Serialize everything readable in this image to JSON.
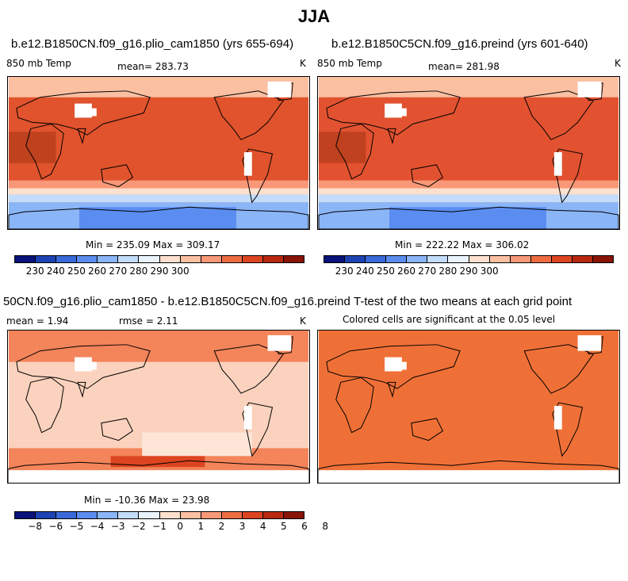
{
  "title": "JJA",
  "panels": [
    {
      "title": "b.e12.B1850CN.f09_g16.plio_cam1850 (yrs 655-694)",
      "left_label": "850 mb Temp",
      "center_label": "mean= 283.73",
      "right_label": "K",
      "minmax": "Min = 235.09 Max = 309.17",
      "fill_color": "#e0532c",
      "land_tint": "#b03a18"
    },
    {
      "title": "b.e12.B1850C5CN.f09_g16.preind (yrs 601-640)",
      "left_label": "850 mb Temp",
      "center_label": "mean= 281.98",
      "right_label": "K",
      "minmax": "Min = 222.22 Max = 306.02",
      "fill_color": "#e25230",
      "land_tint": "#b03a18"
    },
    {
      "title": "50CN.f09_g16.plio_cam1850 - b.e12.B1850C5CN.f09_g16.preind",
      "left_label": "mean =   1.94",
      "center_label": "rmse =   2.11",
      "right_label": "K",
      "minmax": "Min = -10.36 Max =  23.98",
      "fill_color": "#fbd2bd",
      "land_tint": "#f28a63"
    },
    {
      "title": "T-test of the two means at each grid point",
      "subtitle": "Colored cells are significant at the 0.05 level",
      "fill_color": "#ef7036"
    }
  ],
  "colorbar_abs": {
    "colors": [
      "#08127a",
      "#1d43b3",
      "#3a6ad9",
      "#5b8df0",
      "#8ab5f7",
      "#c2dcfa",
      "#eaf3fc",
      "#fde0cd",
      "#fbbfa2",
      "#f89878",
      "#ef6b42",
      "#dc4520",
      "#b92810",
      "#891405"
    ],
    "ticks": [
      "230",
      "240",
      "250",
      "260",
      "270",
      "280",
      "290",
      "300"
    ]
  },
  "colorbar_diff": {
    "colors": [
      "#08127a",
      "#1d43b3",
      "#3a6ad9",
      "#5b8df0",
      "#8ab5f7",
      "#c2dcfa",
      "#eaf3fc",
      "#fde0cd",
      "#fbbfa2",
      "#f89878",
      "#ef6b42",
      "#dc4520",
      "#b92810",
      "#891405"
    ],
    "ticks": [
      "−8",
      "−6",
      "−5",
      "−4",
      "−3",
      "−2",
      "−1",
      "0",
      "1",
      "2",
      "3",
      "4",
      "5",
      "6",
      "8"
    ]
  }
}
